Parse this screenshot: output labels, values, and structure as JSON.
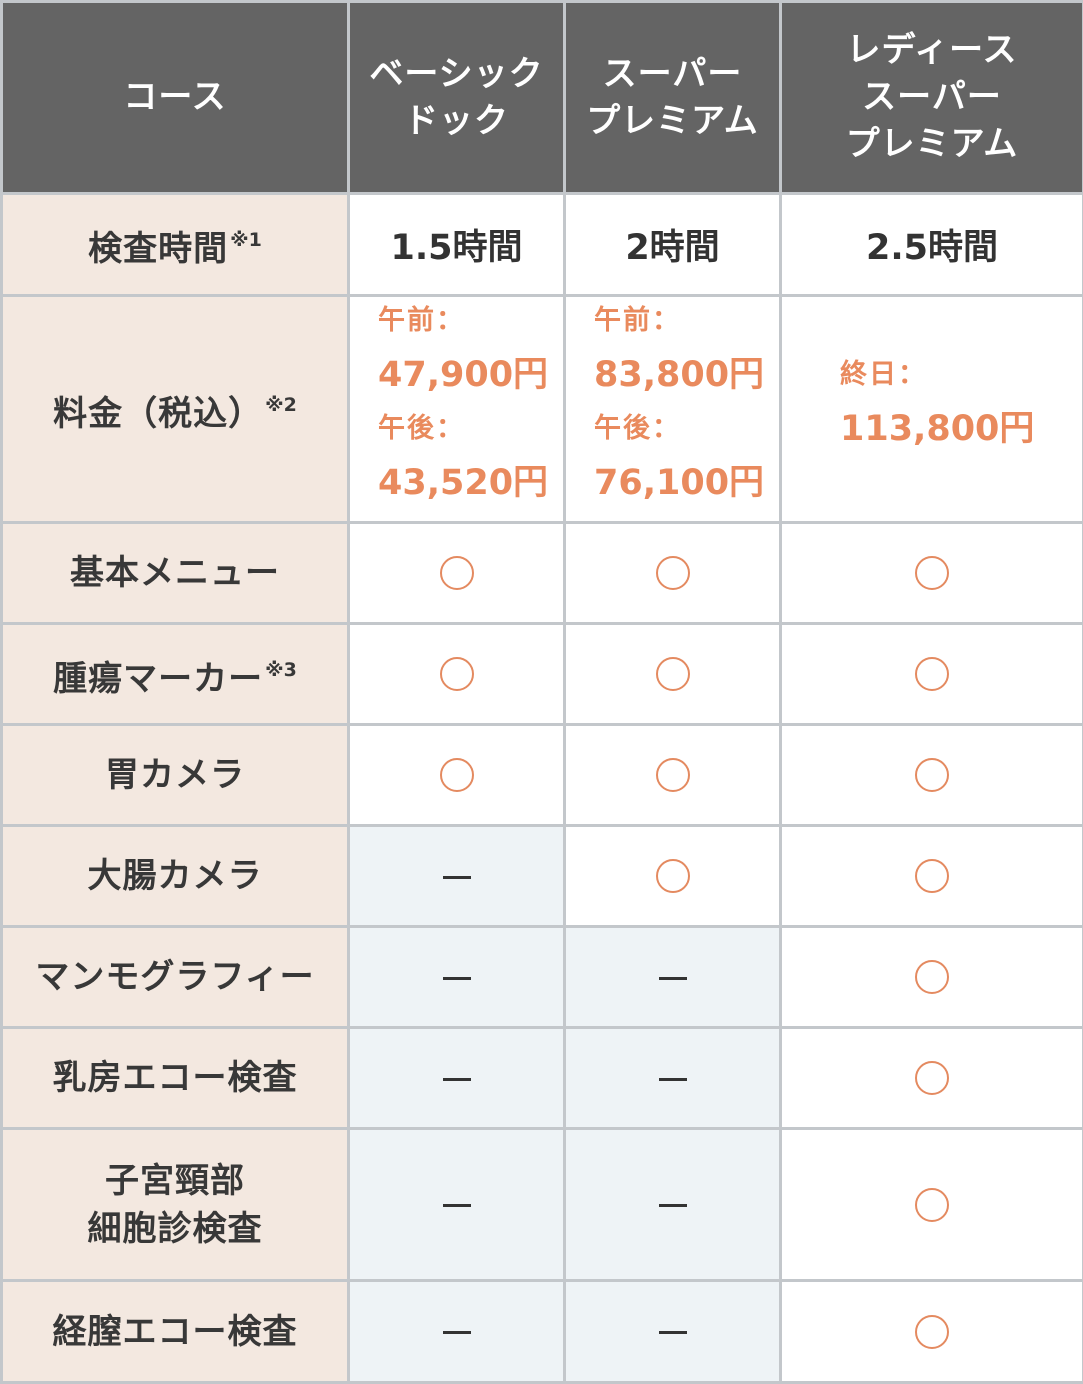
{
  "header": {
    "course_label": "コース",
    "courses": [
      [
        "ベーシック",
        "ドック"
      ],
      [
        "スーパー",
        "プレミアム"
      ],
      [
        "レディース",
        "スーパー",
        "プレミアム"
      ]
    ]
  },
  "time_row": {
    "label": "検査時間",
    "note": "※1",
    "values": [
      "1.5時間",
      "2時間",
      "2.5時間"
    ]
  },
  "price_row": {
    "label": "料金（税込）",
    "note": "※2",
    "basic": {
      "am_label": "午前：",
      "am_price": "47,900円",
      "pm_label": "午後：",
      "pm_price": "43,520円"
    },
    "super": {
      "am_label": "午前：",
      "am_price": "83,800円",
      "pm_label": "午後：",
      "pm_price": "76,100円"
    },
    "ladies": {
      "label": "終日：",
      "price": "113,800円"
    }
  },
  "rows": [
    {
      "label": "基本メニュー",
      "values": [
        "○",
        "○",
        "○"
      ]
    },
    {
      "label": "腫瘍マーカー",
      "note": "※3",
      "values": [
        "○",
        "○",
        "○"
      ]
    },
    {
      "label": "胃カメラ",
      "values": [
        "○",
        "○",
        "○"
      ]
    },
    {
      "label": "大腸カメラ",
      "values": [
        "ー",
        "○",
        "○"
      ]
    },
    {
      "label": "マンモグラフィー",
      "values": [
        "ー",
        "ー",
        "○"
      ]
    },
    {
      "label": "乳房エコー検査",
      "values": [
        "ー",
        "ー",
        "○"
      ]
    },
    {
      "label_lines": [
        "子宮頸部",
        "細胞診検査"
      ],
      "values": [
        "ー",
        "ー",
        "○"
      ]
    },
    {
      "label": "経膣エコー検査",
      "values": [
        "ー",
        "ー",
        "○"
      ]
    }
  ],
  "colors": {
    "header_bg": "#646464",
    "row_header_bg": "#f3e8e0",
    "accent_orange": "#e98a5d",
    "unavailable_bg": "#eef3f6",
    "border": "#c3c7cb"
  }
}
